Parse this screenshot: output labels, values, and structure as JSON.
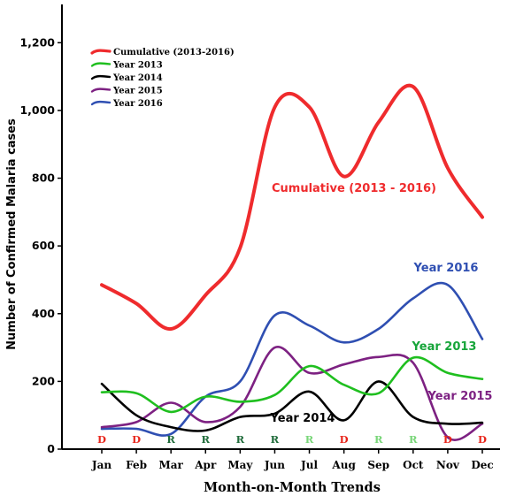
{
  "chart_data": {
    "type": "line",
    "xlabel": "Month-on-Month Trends",
    "ylabel": "Number of Confirmed Malaria cases",
    "categories": [
      "Jan",
      "Feb",
      "Mar",
      "Apr",
      "May",
      "Jun",
      "Jul",
      "Aug",
      "Sep",
      "Oct",
      "Nov",
      "Dec"
    ],
    "y_ticks": [
      "0",
      "200",
      "400",
      "600",
      "800",
      "1,000",
      "1,200"
    ],
    "ylim": [
      0,
      1300
    ],
    "grid": false,
    "legend_position": "top-left",
    "series": [
      {
        "name": "Cumulative (2013-2016)",
        "color": "#ef2b2d",
        "values": [
          485,
          430,
          355,
          455,
          595,
          1010,
          1010,
          805,
          965,
          1070,
          830,
          685
        ],
        "label": "Cumulative (2013 - 2016)",
        "label_color": "#ef2b2d"
      },
      {
        "name": "Year 2013",
        "color": "#1fbf1f",
        "values": [
          168,
          165,
          110,
          155,
          140,
          160,
          245,
          190,
          165,
          270,
          225,
          207
        ],
        "label": "Year 2013",
        "label_color": "#17a53a"
      },
      {
        "name": "Year 2014",
        "color": "#000000",
        "values": [
          193,
          100,
          65,
          55,
          95,
          105,
          170,
          85,
          200,
          95,
          75,
          78
        ],
        "label": "Year 2014",
        "label_color": "#000000"
      },
      {
        "name": "Year 2015",
        "color": "#7d2182",
        "values": [
          65,
          80,
          137,
          80,
          125,
          300,
          225,
          250,
          272,
          255,
          35,
          75
        ],
        "label": "Year 2015",
        "label_color": "#7d2182"
      },
      {
        "name": "Year 2016",
        "color": "#2f4fb2",
        "values": [
          60,
          60,
          45,
          155,
          200,
          395,
          365,
          315,
          355,
          445,
          485,
          325
        ],
        "label": "Year 2016",
        "label_color": "#2f4fb2"
      }
    ],
    "season_markers": [
      {
        "month": "Jan",
        "code": "D",
        "color": "#e8261c"
      },
      {
        "month": "Feb",
        "code": "D",
        "color": "#e8261c"
      },
      {
        "month": "Mar",
        "code": "R",
        "color": "#1f6b3a"
      },
      {
        "month": "Apr",
        "code": "R",
        "color": "#1f6b3a"
      },
      {
        "month": "May",
        "code": "R",
        "color": "#1f6b3a"
      },
      {
        "month": "Jun",
        "code": "R",
        "color": "#1f6b3a"
      },
      {
        "month": "Jul",
        "code": "R",
        "color": "#79d679"
      },
      {
        "month": "Aug",
        "code": "D",
        "color": "#e8261c"
      },
      {
        "month": "Sep",
        "code": "R",
        "color": "#79d679"
      },
      {
        "month": "Oct",
        "code": "R",
        "color": "#79d679"
      },
      {
        "month": "Nov",
        "code": "D",
        "color": "#e8261c"
      },
      {
        "month": "Dec",
        "code": "D",
        "color": "#e8261c"
      }
    ]
  }
}
